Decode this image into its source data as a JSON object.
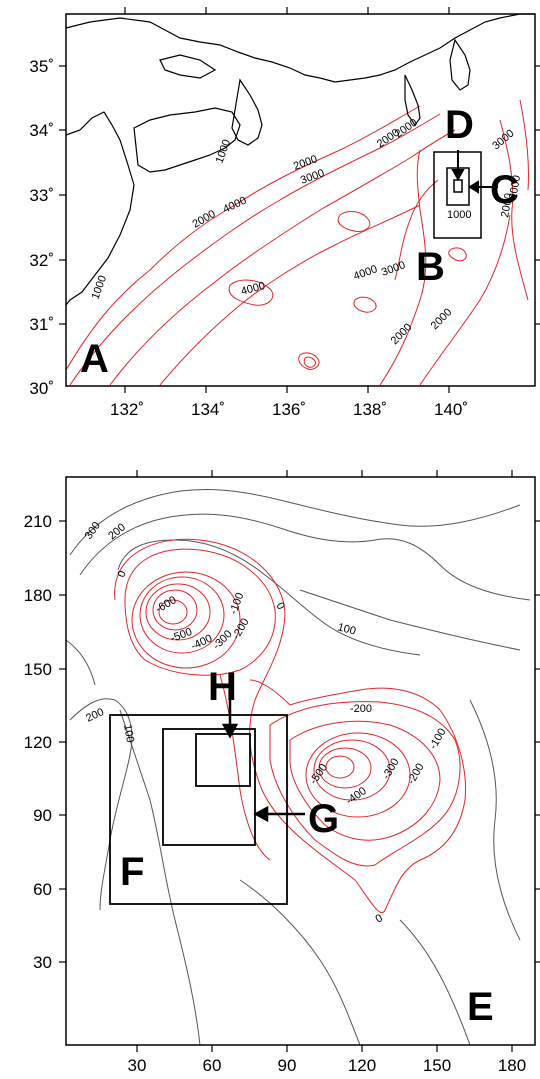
{
  "map_a": {
    "lat_ticks": [
      "35˚",
      "34˚",
      "33˚",
      "32˚",
      "31˚",
      "30˚"
    ],
    "lon_ticks": [
      "132˚",
      "134˚",
      "136˚",
      "138˚",
      "140˚"
    ],
    "contour_labels": [
      "1000",
      "1000",
      "2000",
      "2000",
      "3000",
      "4000",
      "2000",
      "2000",
      "3000",
      "1000",
      "4000",
      "4000",
      "3000",
      "2000",
      "2000",
      "2000",
      "2000"
    ],
    "panel_labels": {
      "A": "A",
      "B": "B",
      "C": "C",
      "D": "D"
    },
    "colors": {
      "coastline": "#000000",
      "bathymetry_contours": "#e0262a",
      "frame": "#000000"
    }
  },
  "map_e": {
    "y_ticks": [
      "210",
      "180",
      "150",
      "120",
      "90",
      "60",
      "30"
    ],
    "x_ticks": [
      "30",
      "60",
      "90",
      "120",
      "150",
      "180"
    ],
    "contour_labels_gray": [
      "300",
      "200",
      "0",
      "100",
      "200",
      "100",
      "0"
    ],
    "contour_labels_red": [
      "-600",
      "-100",
      "-500",
      "-400",
      "-300",
      "-200",
      "-200",
      "-100",
      "-500",
      "-400",
      "-300",
      "-200",
      "0"
    ],
    "panel_labels": {
      "E": "E",
      "F": "F",
      "G": "G",
      "H": "H"
    },
    "colors": {
      "positive_contours": "#555555",
      "negative_contours": "#e0262a",
      "frame": "#000000"
    }
  }
}
